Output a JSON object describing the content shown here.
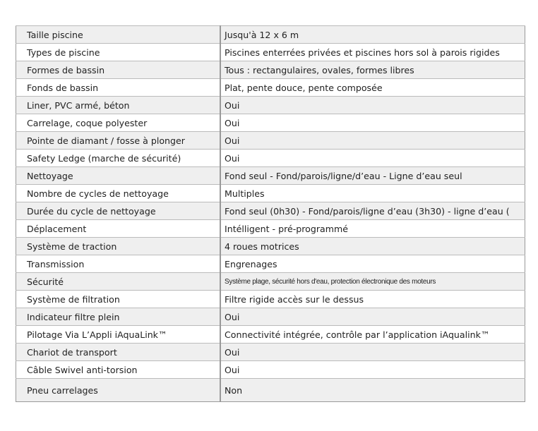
{
  "rows": [
    {
      "label": "Taille piscine",
      "value": "Jusqu'à 12 x 6 m"
    },
    {
      "label": "Types de piscine",
      "value": "Piscines enterrées privées et piscines hors sol à parois rigides"
    },
    {
      "label": "Formes de bassin",
      "value": "Tous : rectangulaires, ovales, formes libres"
    },
    {
      "label": "Fonds de bassin",
      "value": "Plat, pente douce, pente composée"
    },
    {
      "label": "Liner, PVC armé, béton",
      "value": "Oui"
    },
    {
      "label": "Carrelage, coque polyester",
      "value": "Oui"
    },
    {
      "label": "Pointe de diamant / fosse à plonger",
      "value": "Oui"
    },
    {
      "label": "Safety Ledge (marche de sécurité)",
      "value": "Oui"
    },
    {
      "label": "Nettoyage",
      "value": "Fond seul - Fond/parois/ligne/d’eau - Ligne d’eau seul"
    },
    {
      "label": "Nombre de cycles de nettoyage",
      "value": "Multiples"
    },
    {
      "label": "Durée du cycle de nettoyage",
      "value": "Fond seul (0h30) - Fond/parois/ligne d’eau (3h30) - ligne d’eau ("
    },
    {
      "label": "Déplacement",
      "value": "Intélligent - pré-programmé"
    },
    {
      "label": "Système de traction",
      "value": "4 roues motrices"
    },
    {
      "label": "Transmission",
      "value": "Engrenages"
    },
    {
      "label": "Sécurité",
      "value": "Système plage, sécurité hors d'eau, protection électronique des moteurs"
    },
    {
      "label": "Système de filtration",
      "value": "Filtre rigide accès sur le dessus"
    },
    {
      "label": "Indicateur filtre plein",
      "value": "Oui"
    },
    {
      "label": "Pilotage Via  L’Appli iAquaLink™",
      "value": "Connectivité intégrée, contrôle par l’application iAqualink™"
    },
    {
      "label": "Chariot de transport",
      "value": "Oui"
    },
    {
      "label": "Câble Swivel anti-torsion",
      "value": "Oui"
    },
    {
      "label": "Pneu carrelages",
      "value": "Non"
    }
  ]
}
